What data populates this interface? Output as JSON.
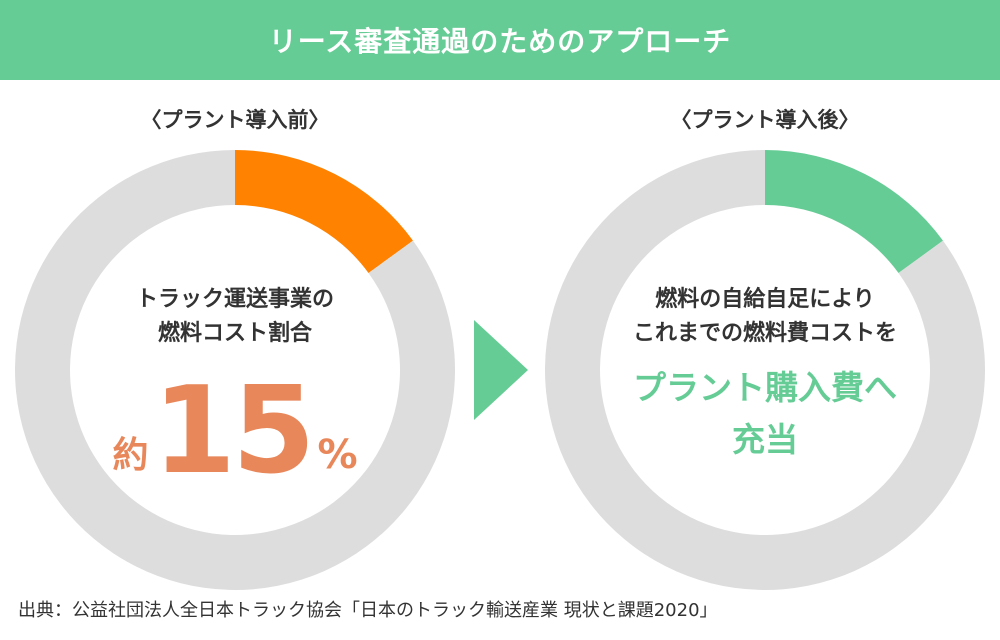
{
  "header": {
    "title": "リース審査通過のためのアプローチ"
  },
  "chart_data": [
    {
      "type": "pie",
      "title": "〈プラント導入前〉",
      "slices": [
        {
          "label": "トラック運送事業の燃料コスト割合",
          "value": 15,
          "color": "#ff8200"
        },
        {
          "label": "",
          "value": 85,
          "color": "#dddddd"
        }
      ]
    },
    {
      "type": "pie",
      "title": "〈プラント導入後〉",
      "slices": [
        {
          "label": "",
          "value": 15,
          "color": "#66cc96"
        },
        {
          "label": "",
          "value": 85,
          "color": "#dddddd"
        }
      ]
    }
  ],
  "left": {
    "line1": "トラック運送事業の",
    "line2": "燃料コスト割合",
    "prefix": "約",
    "value": "15",
    "unit": "%"
  },
  "right": {
    "line1": "燃料の自給自足により",
    "line2": "これまでの燃料費コストを",
    "highlight1": "プラント購入費へ",
    "highlight2": "充当"
  },
  "arrow": {
    "color": "#66cc96"
  },
  "source": "出典：公益社団法人全日本トラック協会「日本のトラック輸送産業 現状と課題2020」"
}
